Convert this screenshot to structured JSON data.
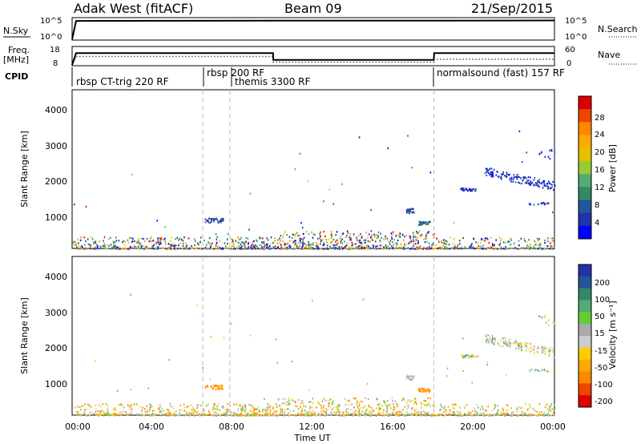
{
  "header": {
    "station": "Adak West (fitACF)",
    "beam": "Beam 09",
    "date": "21/Sep/2015"
  },
  "panels_top": {
    "nsky_label": "N.Sky",
    "nsky_ticks": [
      "10^5",
      "10^0"
    ],
    "nsearch_label": "N.Search",
    "nsearch_ticks": [
      "10^5",
      "10^0"
    ],
    "freq_label": "Freq.",
    "freq_unit": "[MHz]",
    "freq_ticks": [
      "18",
      "8"
    ],
    "nave_label": "Nave",
    "nave_ticks": [
      "60",
      "0"
    ],
    "cpid_label": "CPID"
  },
  "cpid_segments": [
    {
      "label": "rbsp CT-trig 220 RF",
      "start_hour": 0.1
    },
    {
      "label": "rbsp 200 RF",
      "start_hour": 6.5
    },
    {
      "label": "themis 3300 RF",
      "start_hour": 7.85
    },
    {
      "label": "normalsound (fast) 157 RF",
      "start_hour": 18.0
    }
  ],
  "time_axis": {
    "label": "Time UT",
    "ticks": [
      "00:00",
      "04:00",
      "08:00",
      "12:00",
      "16:00",
      "20:00",
      "00:00"
    ],
    "range_hours": [
      0,
      24
    ]
  },
  "power_colorbar": {
    "label": "Power [dB]",
    "ticks": [
      "28",
      "24",
      "20",
      "16",
      "12",
      "8",
      "4"
    ],
    "colors": [
      "#dd0000",
      "#ee4400",
      "#ff8800",
      "#ffaa00",
      "#e8c000",
      "#99cc33",
      "#55aa77",
      "#338866",
      "#225599",
      "#2233aa",
      "#0000ff"
    ]
  },
  "velocity_colorbar": {
    "label": "Velocity [m s⁻¹]",
    "ticks": [
      "200",
      "100",
      "50",
      "15",
      "-15",
      "-50",
      "-100",
      "-200"
    ],
    "colors": [
      "#2233aa",
      "#225599",
      "#338866",
      "#55aa77",
      "#66cc33",
      "#aaaaaa",
      "#cccccc",
      "#ffcc00",
      "#ffaa00",
      "#ff8800",
      "#ee4400",
      "#dd0000"
    ]
  },
  "chart_data": [
    {
      "type": "heatmap",
      "title": "",
      "xlabel": "Time UT",
      "ylabel": "Slant Range [km]",
      "yticks": [
        "1000",
        "2000",
        "3000",
        "4000"
      ],
      "ylim": [
        180,
        4600
      ],
      "xlim": [
        0,
        24
      ],
      "colorbar": "Power [dB]",
      "features": [
        {
          "t0": 0,
          "t1": 24,
          "r0": 180,
          "r1": 550,
          "value": "mixed 4-28 dB",
          "note": "near-range scatter band"
        },
        {
          "t0": 6.6,
          "t1": 7.5,
          "r0": 900,
          "r1": 1050,
          "value": "8 dB"
        },
        {
          "t0": 16.5,
          "t1": 17.1,
          "r0": 1150,
          "r1": 1350,
          "value": "8 dB"
        },
        {
          "t0": 17.2,
          "t1": 17.8,
          "r0": 850,
          "r1": 950,
          "value": "8-12 dB"
        },
        {
          "t0": 19.3,
          "t1": 24,
          "r0": 1700,
          "r1": 2600,
          "value": "4-8 dB"
        }
      ]
    },
    {
      "type": "heatmap",
      "title": "",
      "xlabel": "Time UT",
      "ylabel": "Slant Range [km]",
      "yticks": [
        "1000",
        "2000",
        "3000",
        "4000"
      ],
      "ylim": [
        180,
        4600
      ],
      "xlim": [
        0,
        24
      ],
      "colorbar": "Velocity [m s⁻¹]",
      "features": [
        {
          "t0": 0,
          "t1": 24,
          "r0": 180,
          "r1": 550,
          "value": "-15 to -50 m/s"
        },
        {
          "t0": 6.6,
          "t1": 7.5,
          "r0": 900,
          "r1": 1050,
          "value": "-50 m/s"
        },
        {
          "t0": 16.5,
          "t1": 17.1,
          "r0": 1150,
          "r1": 1350,
          "value": "-15 to 15 m/s"
        },
        {
          "t0": 17.2,
          "t1": 17.8,
          "r0": 850,
          "r1": 950,
          "value": "-50 m/s"
        },
        {
          "t0": 19.3,
          "t1": 24,
          "r0": 1700,
          "r1": 2600,
          "value": "-15 to 15 m/s"
        }
      ]
    },
    {
      "type": "line",
      "title": "",
      "series": [
        {
          "name": "N.Sky",
          "x": [
            0,
            0.2,
            10,
            18,
            24
          ],
          "values": [
            1,
            60000,
            70000,
            70000,
            80000
          ]
        },
        {
          "name": "Freq.",
          "x": [
            0,
            0.2,
            10,
            10.01,
            18,
            18.01,
            24
          ],
          "values": [
            8,
            15,
            15,
            11,
            11,
            15,
            15
          ]
        },
        {
          "name": "Nave",
          "x": [
            0,
            0.2,
            10,
            10.01,
            18,
            18.01,
            24
          ],
          "values": [
            0,
            30,
            30,
            10,
            10,
            20,
            20
          ]
        }
      ]
    }
  ]
}
